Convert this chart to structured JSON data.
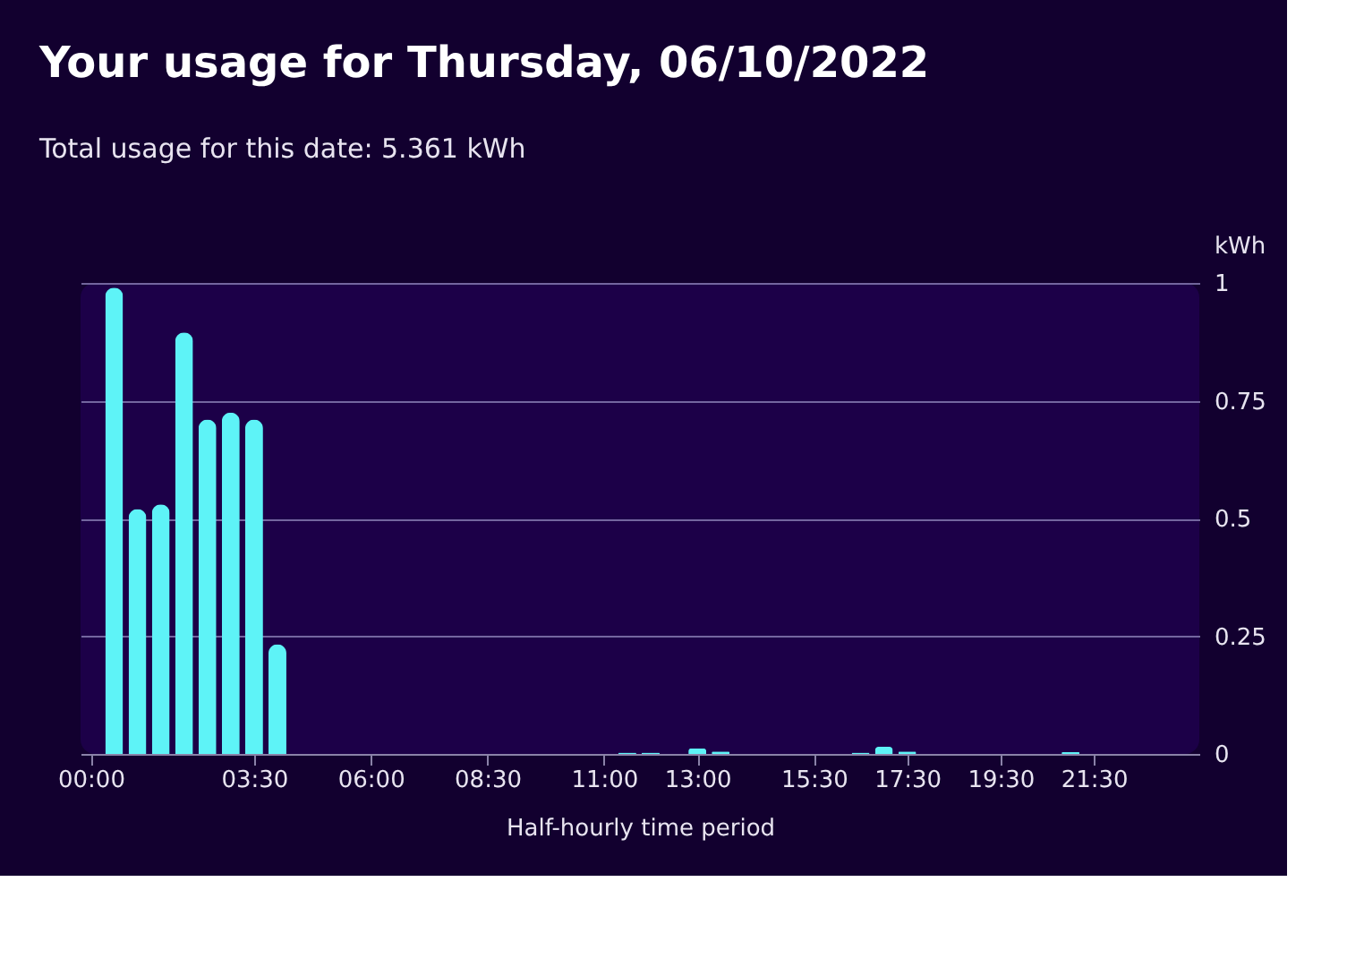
{
  "chart_data": {
    "type": "bar",
    "title": "Your usage for Thursday, 06/10/2022",
    "subtitle": "Total usage for this date: 5.361 kWh",
    "xlabel": "Half-hourly time period",
    "ylabel": "kWh",
    "x": [
      0.5,
      1.0,
      1.5,
      2.0,
      2.5,
      3.0,
      3.5,
      4.0,
      11.5,
      12.0,
      13.0,
      13.5,
      16.5,
      17.0,
      17.5,
      21.0
    ],
    "series": [
      {
        "color": "#5ef3f7",
        "values": [
          0.99,
          0.52,
          0.53,
          0.895,
          0.71,
          0.725,
          0.71,
          0.233,
          0.003,
          0.003,
          0.012,
          0.005,
          0.003,
          0.015,
          0.005,
          0.004
        ]
      }
    ],
    "xlim": [
      -0.22,
      23.76
    ],
    "xticks": [
      {
        "value": 0,
        "label": "00:00"
      },
      {
        "value": 3.5,
        "label": "03:30"
      },
      {
        "value": 6,
        "label": "06:00"
      },
      {
        "value": 8.5,
        "label": "08:30"
      },
      {
        "value": 11,
        "label": "11:00"
      },
      {
        "value": 13,
        "label": "13:00"
      },
      {
        "value": 15.5,
        "label": "15:30"
      },
      {
        "value": 17.5,
        "label": "17:30"
      },
      {
        "value": 19.5,
        "label": "19:30"
      },
      {
        "value": 21.5,
        "label": "21:30"
      }
    ],
    "ylim": [
      0,
      1
    ],
    "yticks": [
      0,
      0.25,
      0.5,
      0.75,
      1
    ],
    "grid": "y",
    "legend": false
  }
}
